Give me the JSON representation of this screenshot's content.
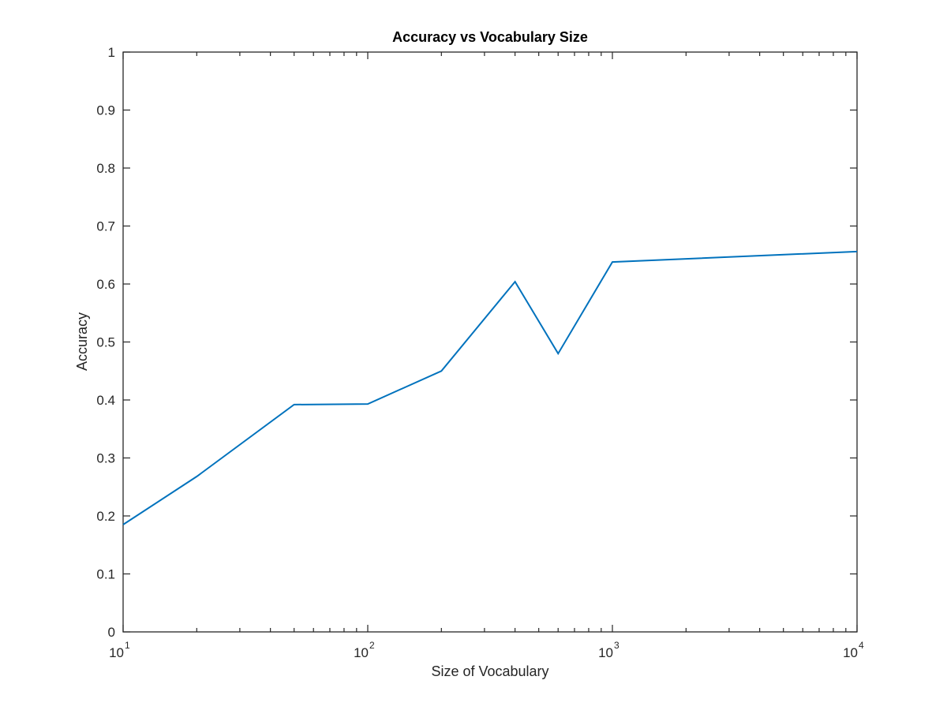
{
  "chart_data": {
    "type": "line",
    "title": "Accuracy vs Vocabulary Size",
    "xlabel": "Size of Vocabulary",
    "ylabel": "Accuracy",
    "xscale": "log",
    "xlim": [
      10,
      10000
    ],
    "ylim": [
      0,
      1
    ],
    "grid": false,
    "x_ticks": [
      {
        "base": "10",
        "exp": "1",
        "value": 10
      },
      {
        "base": "10",
        "exp": "2",
        "value": 100
      },
      {
        "base": "10",
        "exp": "3",
        "value": 1000
      },
      {
        "base": "10",
        "exp": "4",
        "value": 10000
      }
    ],
    "y_ticks": [
      "0",
      "0.1",
      "0.2",
      "0.3",
      "0.4",
      "0.5",
      "0.6",
      "0.7",
      "0.8",
      "0.9",
      "1"
    ],
    "series": [
      {
        "color": "#0072BD",
        "x": [
          10,
          20,
          50,
          100,
          200,
          400,
          600,
          1000,
          10000
        ],
        "values": [
          0.185,
          0.268,
          0.392,
          0.393,
          0.45,
          0.604,
          0.48,
          0.638,
          0.656
        ]
      }
    ]
  }
}
